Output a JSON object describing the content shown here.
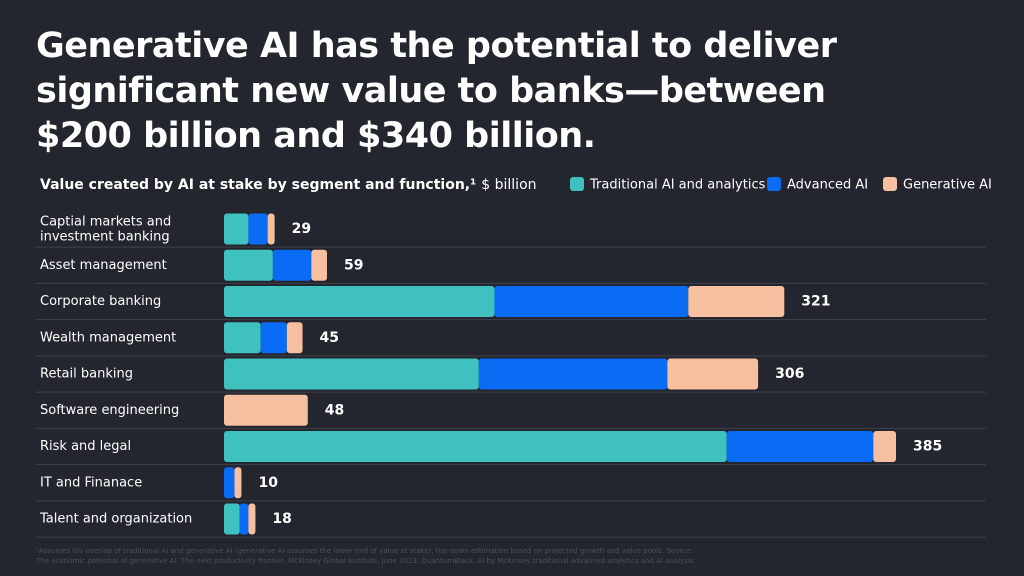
{
  "chart_data": {
    "type": "stacked-bar-horizontal",
    "title": [
      "Generative AI has the potential to deliver",
      "significant new value to banks—between",
      "$200 billion and $340 billion."
    ],
    "subtitle": "Value created by AI at stake by segment and function,¹",
    "unit": "$ billion",
    "categories": [
      "Captial markets and\ninvestment banking",
      "Asset management",
      "Corporate banking",
      "Wealth management",
      "Retail banking",
      "Software engineering",
      "Risk and legal",
      "IT and Finanace",
      "Talent and organization"
    ],
    "series": [
      {
        "name": "Traditional AI and analytics",
        "color": "#3fc1c0",
        "values": [
          14,
          28,
          155,
          21,
          146,
          0,
          288,
          0,
          9
        ]
      },
      {
        "name": "Advanced AI",
        "color": "#0a6cf5",
        "values": [
          11,
          22,
          111,
          15,
          108,
          0,
          84,
          6,
          5
        ]
      },
      {
        "name": "Generative AI",
        "color": "#f5bfa0",
        "values": [
          4,
          9,
          55,
          9,
          52,
          48,
          13,
          4,
          4
        ]
      }
    ],
    "totals": [
      29,
      59,
      321,
      45,
      306,
      48,
      385,
      10,
      18
    ],
    "xlim": [
      0,
      385
    ],
    "footnote": [
      "¹Assumes 0% overlap of traditional AI and generative AI (generative AI assumes the lower end of value at stake), top-down estimation based on projected growth and value pools. Source:",
      "The economic potential of generative AI: The next productivity frontier, McKinsey Global Institute, June 2023; QuantumBlack, AI by McKinsey traditional advanced analytics and AI analysis"
    ]
  }
}
